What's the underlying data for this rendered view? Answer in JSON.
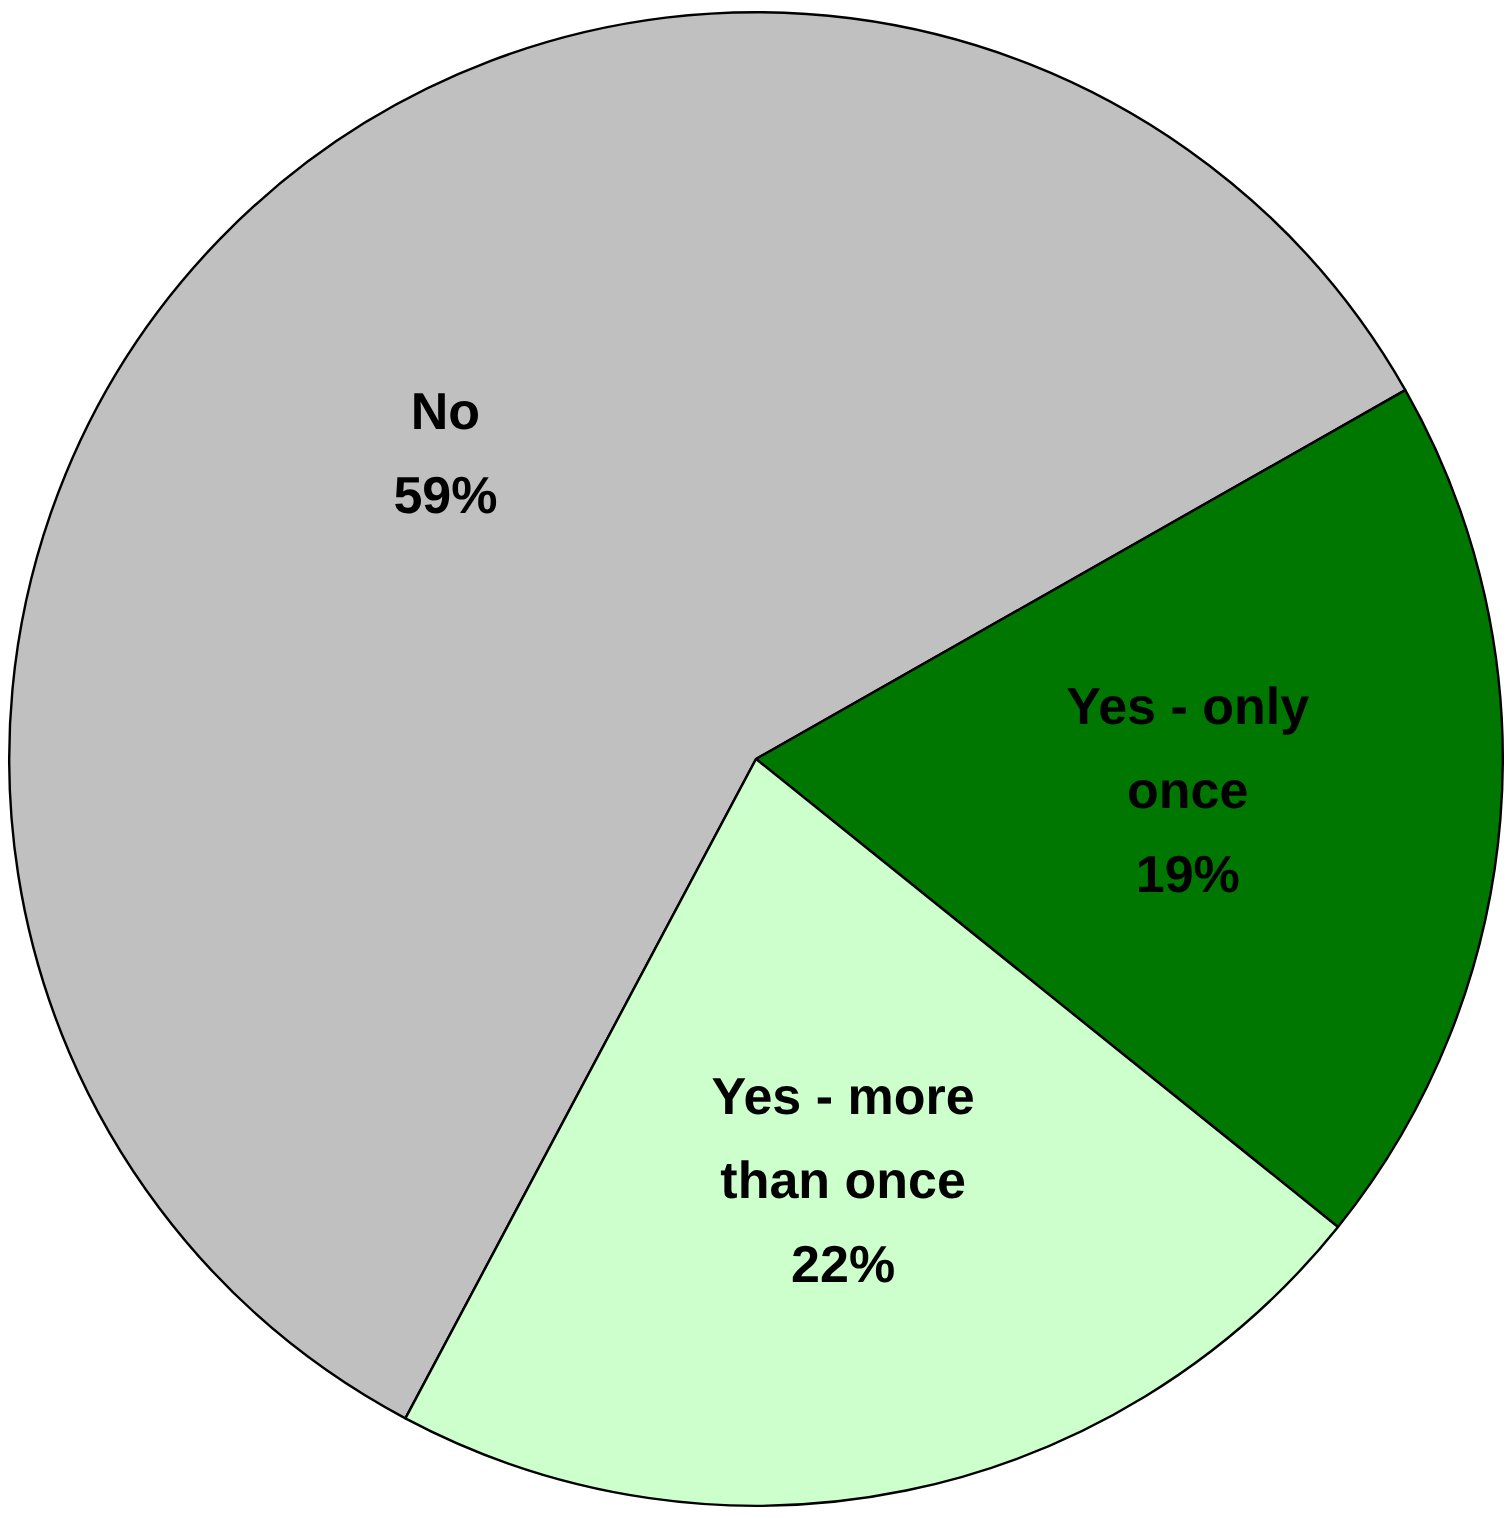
{
  "chart_data": {
    "type": "pie",
    "categories": [
      "No",
      "Yes - only once",
      "Yes - more than once"
    ],
    "values": [
      59,
      19,
      22
    ],
    "colors": [
      "#c0c0c0",
      "#007700",
      "#ccffcc"
    ],
    "value_labels": [
      "59%",
      "19%",
      "22%"
    ],
    "legend": false
  }
}
